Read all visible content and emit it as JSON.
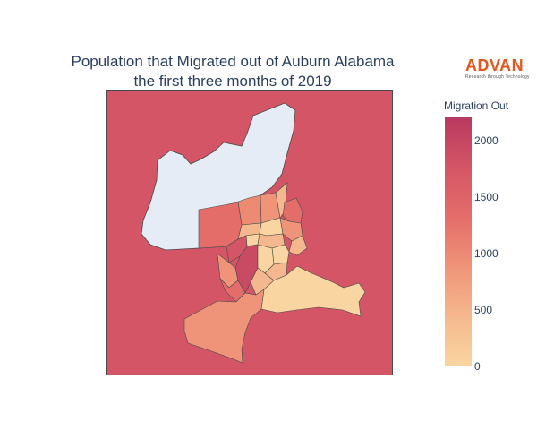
{
  "title_line1": "Population that Migrated out of Auburn Alabama",
  "title_line2": "the first three months of 2019",
  "logo": {
    "brand": "ADVAN",
    "tagline": "Research through Technology"
  },
  "colorbar": {
    "title": "Migration Out",
    "ticks": [
      "2000",
      "1500",
      "1000",
      "500",
      "0"
    ],
    "colors": [
      "#f9d5a1",
      "#f5b88e",
      "#ef9478",
      "#e46d6a",
      "#d45566",
      "#b8395f"
    ]
  },
  "map": {
    "background_region_color": "#d45566",
    "no_data_color": "#e6ecf5",
    "border_color": "#4a4a4a"
  }
}
